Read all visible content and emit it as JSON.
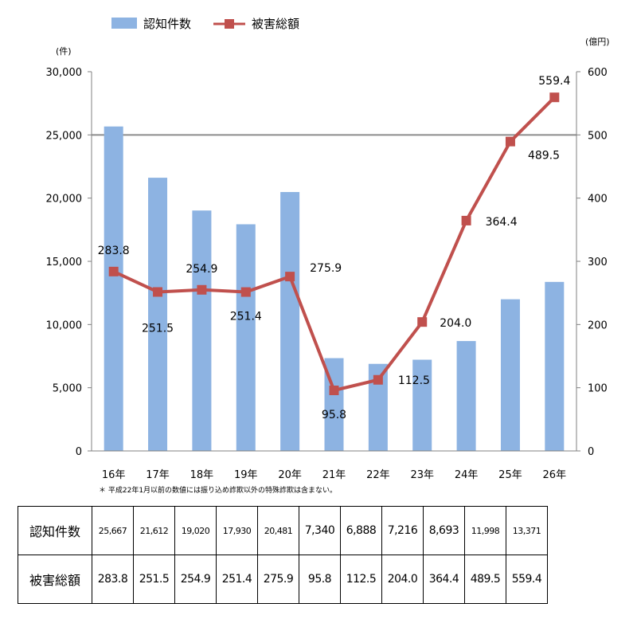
{
  "chart_data": {
    "type": "bar+line",
    "categories": [
      "16年",
      "17年",
      "18年",
      "19年",
      "20年",
      "21年",
      "22年",
      "23年",
      "24年",
      "25年",
      "26年"
    ],
    "series": [
      {
        "name": "認知件数",
        "type": "bar",
        "axis": "left",
        "color": "#8DB3E2",
        "values": [
          25667,
          21612,
          19020,
          17930,
          20481,
          7340,
          6888,
          7216,
          8693,
          11998,
          13371
        ]
      },
      {
        "name": "被害総額",
        "type": "line",
        "axis": "right",
        "color": "#C0504D",
        "values": [
          283.8,
          251.5,
          254.9,
          251.4,
          275.9,
          95.8,
          112.5,
          204.0,
          364.4,
          489.5,
          559.4
        ],
        "labels": [
          "283.8",
          "251.5",
          "254.9",
          "251.4",
          "275.9",
          "95.8",
          "112.5",
          "204.0",
          "364.4",
          "489.5",
          "559.4"
        ]
      }
    ],
    "left_axis": {
      "unit": "(件)",
      "ylim": [
        0,
        30000
      ],
      "ticks": [
        0,
        5000,
        10000,
        15000,
        20000,
        25000,
        30000
      ],
      "tick_labels": [
        "0",
        "5,000",
        "10,000",
        "15,000",
        "20,000",
        "25,000",
        "30,000"
      ]
    },
    "right_axis": {
      "unit": "(億円)",
      "ylim": [
        0,
        600
      ],
      "ticks": [
        0,
        100,
        200,
        300,
        400,
        500,
        600
      ],
      "tick_labels": [
        "0",
        "100",
        "200",
        "300",
        "400",
        "500",
        "600"
      ]
    },
    "legend_position": "top",
    "gridline": 25000,
    "footnote": "＊ 平成22年1月以前の数値には振り込め詐欺以外の特殊詐欺は含まない。"
  },
  "table": {
    "rows": [
      {
        "header": "認知件数",
        "cells": [
          "25,667",
          "21,612",
          "19,020",
          "17,930",
          "20,481",
          "7,340",
          "6,888",
          "7,216",
          "8,693",
          "11,998",
          "13,371"
        ]
      },
      {
        "header": "被害総額",
        "cells": [
          "283.8",
          "251.5",
          "254.9",
          "251.4",
          "275.9",
          "95.8",
          "112.5",
          "204.0",
          "364.4",
          "489.5",
          "559.4"
        ]
      }
    ]
  }
}
